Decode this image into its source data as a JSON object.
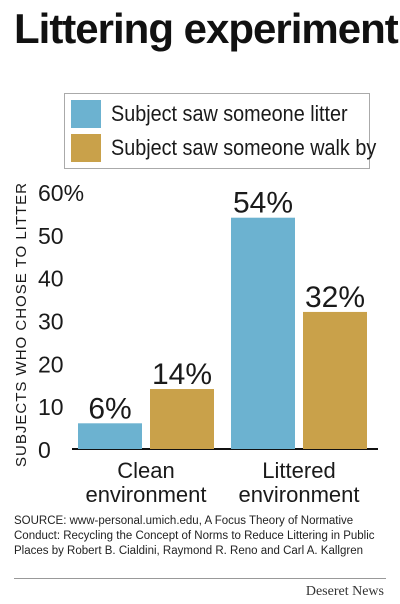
{
  "chart_data": {
    "type": "bar",
    "title": "Littering experiment",
    "ylabel": "SUBJECTS WHO CHOSE TO LITTER",
    "ylim": [
      0,
      60
    ],
    "yticks": [
      "0",
      "10",
      "20",
      "30",
      "40",
      "50",
      "60%"
    ],
    "ytick_values": [
      0,
      10,
      20,
      30,
      40,
      50,
      60
    ],
    "categories": [
      "Clean environment",
      "Littered environment"
    ],
    "series": [
      {
        "name": "Subject saw someone litter",
        "values": [
          6,
          54
        ],
        "labels": [
          "6%",
          "54%"
        ],
        "color": "#6cb2d0"
      },
      {
        "name": "Subject saw someone walk by",
        "values": [
          14,
          32
        ],
        "labels": [
          "14%",
          "32%"
        ],
        "color": "#c9a14a"
      }
    ],
    "legend_position": "top",
    "grid": false
  },
  "source": "SOURCE:  www-personal.umich.edu, A Focus Theory of Normative Conduct: Recycling the Concept of Norms to Reduce Littering in Public Places by Robert B. Cialdini, Raymond R. Reno and Carl A. Kallgren",
  "brand": "Deseret News"
}
